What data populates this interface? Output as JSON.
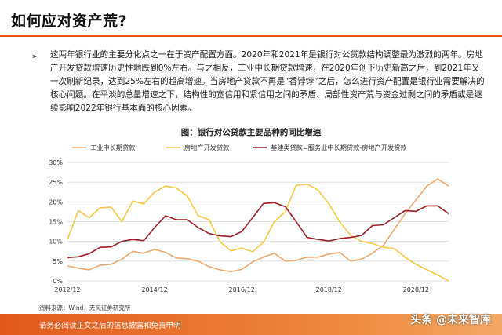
{
  "page": {
    "title": "如何应对资产荒?",
    "bullet_symbol": "➢",
    "paragraph": "这两年银行业的主要分化点之一在于资产配置方面。2020年和2021年是银行对公贷款结构调整最为激烈的两年。房地产开发贷款增速历史性地跌到0%左右。与之相反，工业中长期贷款增速，在2020年创下历史新高之后，到2021年又一次刷新纪录，达到25%左右的超高增速。当房地产贷款不再是“香饽饽”之后，怎么进行资产配置是银行业需要解决的核心问题。在平淡的总量增速之下，结构性的宽信用和紧信用之间的矛盾、局部性资产荒与资金过剩之间的矛盾或是继续影响2022年银行基本面的核心因素。",
    "figure_title": "图：银行对公贷款主要品种的同比增速",
    "source": "资料来源：Wind，天风证券研究所",
    "footer": "请务必阅读正文之后的信息披露和免责申明",
    "watermark": "头条 @未来智库"
  },
  "colors": {
    "accent": "#e8541e",
    "industrial": "#f0a870",
    "real_estate": "#f5c842",
    "infrastructure": "#a01d26"
  },
  "chart_data": {
    "type": "line",
    "title": "图：银行对公贷款主要品种的同比增速",
    "x": [
      "2012Q4",
      "2013Q1",
      "2013Q2",
      "2013Q3",
      "2013Q4",
      "2014Q1",
      "2014Q2",
      "2014Q3",
      "2014Q4",
      "2015Q1",
      "2015Q2",
      "2015Q3",
      "2015Q4",
      "2016Q1",
      "2016Q2",
      "2016Q3",
      "2016Q4",
      "2017Q1",
      "2017Q2",
      "2017Q3",
      "2017Q4",
      "2018Q1",
      "2018Q2",
      "2018Q3",
      "2018Q4",
      "2019Q1",
      "2019Q2",
      "2019Q3",
      "2019Q4",
      "2020Q1",
      "2020Q2",
      "2020Q3",
      "2020Q4",
      "2021Q1",
      "2021Q2",
      "2021Q3"
    ],
    "x_tick_labels": [
      "2012/12",
      "2014/12",
      "2016/12",
      "2018/12",
      "2020/12"
    ],
    "x_tick_index": [
      0,
      8,
      16,
      24,
      32
    ],
    "ylim": [
      0,
      30
    ],
    "y_ticks": [
      "0%",
      "5%",
      "10%",
      "15%",
      "20%",
      "25%",
      "30%"
    ],
    "y_tick_values": [
      0,
      5,
      10,
      15,
      20,
      25,
      30
    ],
    "grid": true,
    "legend_position": "top",
    "series": [
      {
        "name": "工业中长期贷款",
        "color": "#f0a870",
        "values": [
          3.8,
          3.2,
          2.8,
          4.0,
          4.2,
          5.5,
          7.5,
          7.0,
          8.0,
          7.2,
          5.8,
          5.6,
          5.0,
          3.6,
          2.8,
          2.3,
          2.9,
          4.8,
          6.0,
          7.0,
          5.0,
          5.2,
          6.0,
          6.0,
          6.8,
          7.2,
          5.0,
          5.5,
          7.0,
          9.0,
          13.0,
          17.0,
          20.5,
          24.0,
          25.8,
          24.0
        ]
      },
      {
        "name": "房地产开发贷款",
        "color": "#f5c842",
        "values": [
          10.5,
          17.8,
          16.0,
          18.5,
          18.7,
          15.0,
          20.2,
          19.5,
          22.5,
          24.0,
          23.5,
          21.5,
          16.5,
          15.5,
          10.0,
          7.6,
          8.3,
          7.4,
          9.8,
          15.0,
          17.5,
          24.2,
          24.5,
          23.0,
          19.5,
          15.0,
          11.5,
          10.0,
          9.5,
          8.5,
          8.2,
          6.0,
          4.2,
          2.8,
          1.5,
          0.0
        ]
      },
      {
        "name": "基建类贷款=服务业中长期贷款-房地产开发贷款",
        "color": "#a01d26",
        "values": [
          5.9,
          6.1,
          6.9,
          8.5,
          8.6,
          10.0,
          10.5,
          10.2,
          13.5,
          16.5,
          15.5,
          15.5,
          13.5,
          12.0,
          11.4,
          11.2,
          12.5,
          16.0,
          19.6,
          19.8,
          18.8,
          15.0,
          11.0,
          10.5,
          10.1,
          10.7,
          11.0,
          11.5,
          14.0,
          14.2,
          16.0,
          17.8,
          17.6,
          19.0,
          19.0,
          17.0
        ]
      }
    ]
  }
}
